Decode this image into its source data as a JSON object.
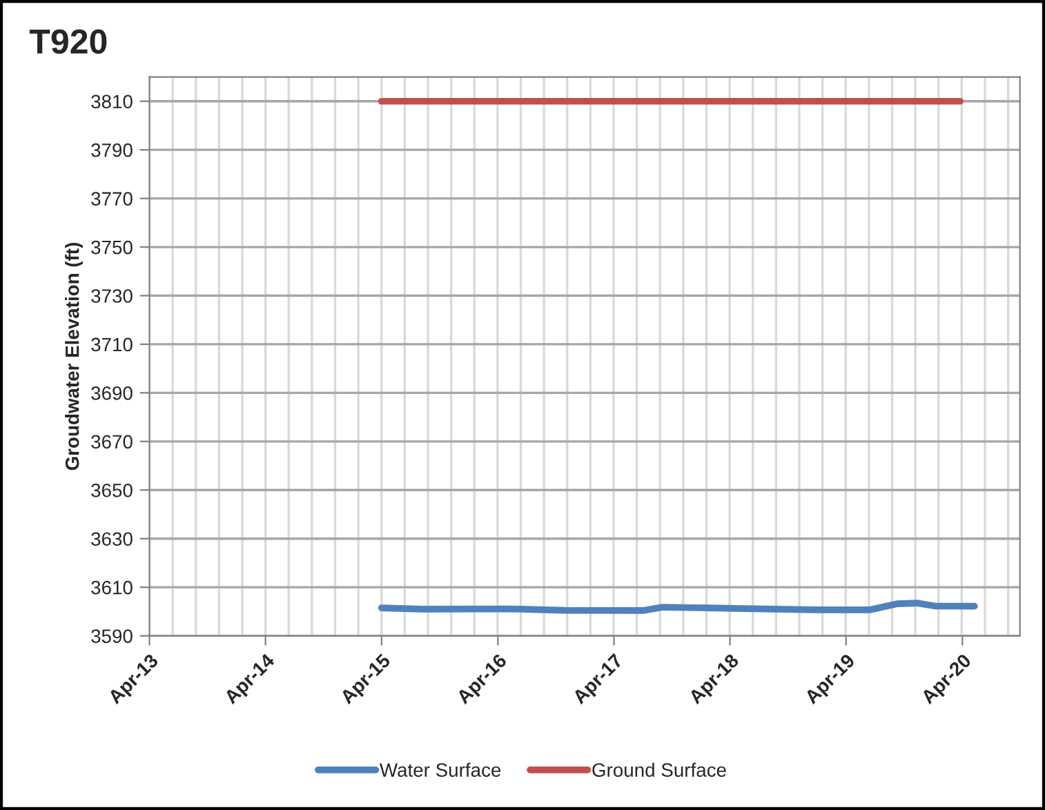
{
  "chart_data": {
    "type": "line",
    "title": "T920",
    "ylabel": "Groudwater Elevation (ft)",
    "ylim": [
      3590,
      3820
    ],
    "yticks": [
      3590,
      3610,
      3630,
      3650,
      3670,
      3690,
      3710,
      3730,
      3750,
      3770,
      3790,
      3810
    ],
    "xlim": [
      "2013-04-01",
      "2020-09-29"
    ],
    "xticks": [
      {
        "value": "2013-04-01",
        "label": "Apr-13"
      },
      {
        "value": "2014-04-01",
        "label": "Apr-14"
      },
      {
        "value": "2015-04-01",
        "label": "Apr-15"
      },
      {
        "value": "2016-04-01",
        "label": "Apr-16"
      },
      {
        "value": "2017-04-01",
        "label": "Apr-17"
      },
      {
        "value": "2018-04-01",
        "label": "Apr-18"
      },
      {
        "value": "2019-04-01",
        "label": "Apr-19"
      },
      {
        "value": "2020-04-01",
        "label": "Apr-20"
      }
    ],
    "grid": true,
    "legend": "bottom",
    "marker": "none",
    "line_style": "solid",
    "series": [
      {
        "name": "Water Surface",
        "color": "#4f81bd",
        "x": [
          "2015-04-01",
          "2015-08-08",
          "2016-05-07",
          "2016-10-28",
          "2017-07-01",
          "2017-09-01",
          "2018-04-15",
          "2018-12-30",
          "2019-06-14",
          "2019-09-10",
          "2019-11-10",
          "2020-01-04",
          "2020-05-09"
        ],
        "values": [
          3601.5,
          3601.0,
          3601.1,
          3600.5,
          3600.4,
          3601.8,
          3601.3,
          3600.7,
          3600.7,
          3603.2,
          3603.5,
          3602.3,
          3602.2
        ]
      },
      {
        "name": "Ground Surface",
        "color": "#c0504d",
        "x": [
          "2015-04-01",
          "2020-03-25"
        ],
        "values": [
          3810,
          3810
        ]
      }
    ]
  }
}
